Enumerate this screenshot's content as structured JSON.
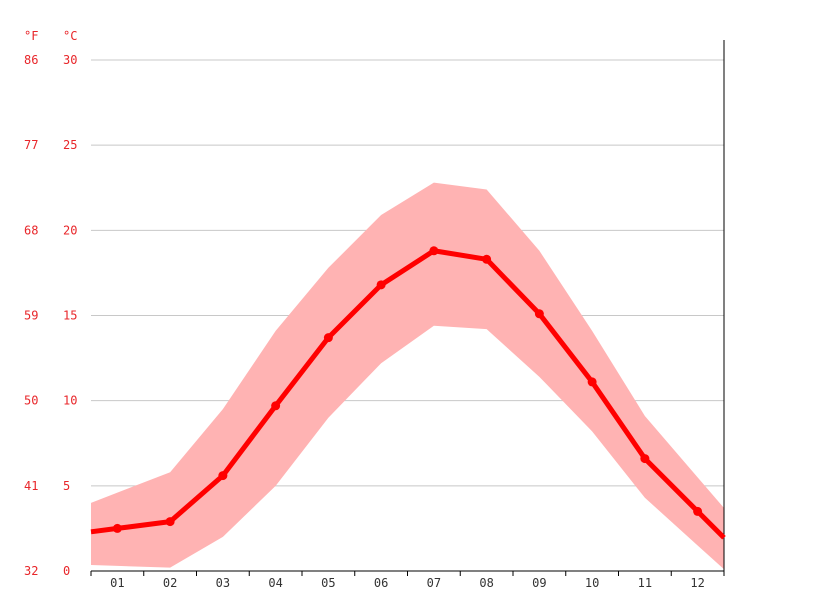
{
  "chart_data": {
    "type": "line",
    "units": {
      "fahrenheit": "°F",
      "celsius": "°C"
    },
    "categories": [
      "01",
      "02",
      "03",
      "04",
      "05",
      "06",
      "07",
      "08",
      "09",
      "10",
      "11",
      "12"
    ],
    "y_ticks_celsius": [
      "0",
      "5",
      "10",
      "15",
      "20",
      "25",
      "30"
    ],
    "y_ticks_fahrenheit": [
      "32",
      "41",
      "50",
      "59",
      "68",
      "77",
      "86"
    ],
    "ylim": [
      0,
      30
    ],
    "grid": true,
    "series": [
      {
        "values": [
          2.5,
          2.9,
          5.6,
          9.7,
          13.7,
          16.8,
          18.8,
          18.3,
          15.1,
          11.1,
          6.6,
          3.5
        ]
      }
    ],
    "band": {
      "upper": [
        4.6,
        5.8,
        9.5,
        14.1,
        17.8,
        20.9,
        22.8,
        22.4,
        18.8,
        14.1,
        9.1,
        5.5
      ],
      "lower": [
        0.3,
        0.2,
        2.0,
        5.0,
        9.0,
        12.2,
        14.4,
        14.2,
        11.4,
        8.2,
        4.3,
        1.5
      ]
    },
    "colors": {
      "line": "#ff0000",
      "band": "#ffb3b3",
      "tick_text": "#e8262a"
    }
  }
}
